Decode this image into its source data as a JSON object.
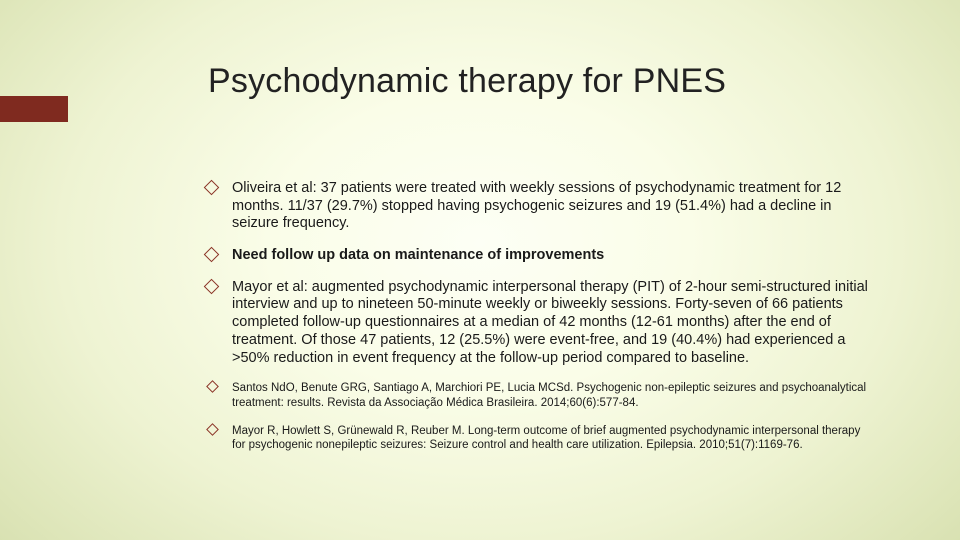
{
  "slide": {
    "title": "Psychodynamic therapy for PNES",
    "accent_color": "#7f2a1f",
    "bullet_border_color": "#8a3326",
    "background_gradient": {
      "inner": "#fdfff5",
      "mid": "#eef3d2",
      "outer": "#d2dba9"
    },
    "bullets": [
      {
        "text": "Oliveira et al: 37 patients were treated with weekly sessions of psychodynamic treatment for 12 months. 11/37 (29.7%) stopped having psychogenic seizures and 19 (51.4%) had a decline in seizure frequency.",
        "bold": false,
        "size": "normal"
      },
      {
        "text": "Need follow up data on maintenance of improvements",
        "bold": true,
        "size": "normal"
      },
      {
        "text": "Mayor et al: augmented psychodynamic interpersonal therapy (PIT) of 2-hour semi-structured initial interview and up to nineteen 50-minute weekly or biweekly sessions. Forty-seven of 66 patients completed follow-up questionnaires at a median of 42 months (12-61 months) after the end of treatment. Of those 47 patients, 12 (25.5%) were event-free, and 19 (40.4%) had experienced a >50% reduction in event frequency at the follow-up period compared to baseline.",
        "bold": false,
        "size": "normal"
      },
      {
        "text": "Santos NdO, Benute GRG, Santiago A, Marchiori PE, Lucia MCSd. Psychogenic non-epileptic seizures and psychoanalytical treatment: results. Revista da Associação Médica Brasileira. 2014;60(6):577-84.",
        "bold": false,
        "size": "small"
      },
      {
        "text": "Mayor R, Howlett S, Grünewald R, Reuber M. Long‐term outcome of brief augmented psychodynamic interpersonal therapy for psychogenic nonepileptic seizures: Seizure control and health care utilization. Epilepsia. 2010;51(7):1169-76.",
        "bold": false,
        "size": "small"
      }
    ]
  }
}
